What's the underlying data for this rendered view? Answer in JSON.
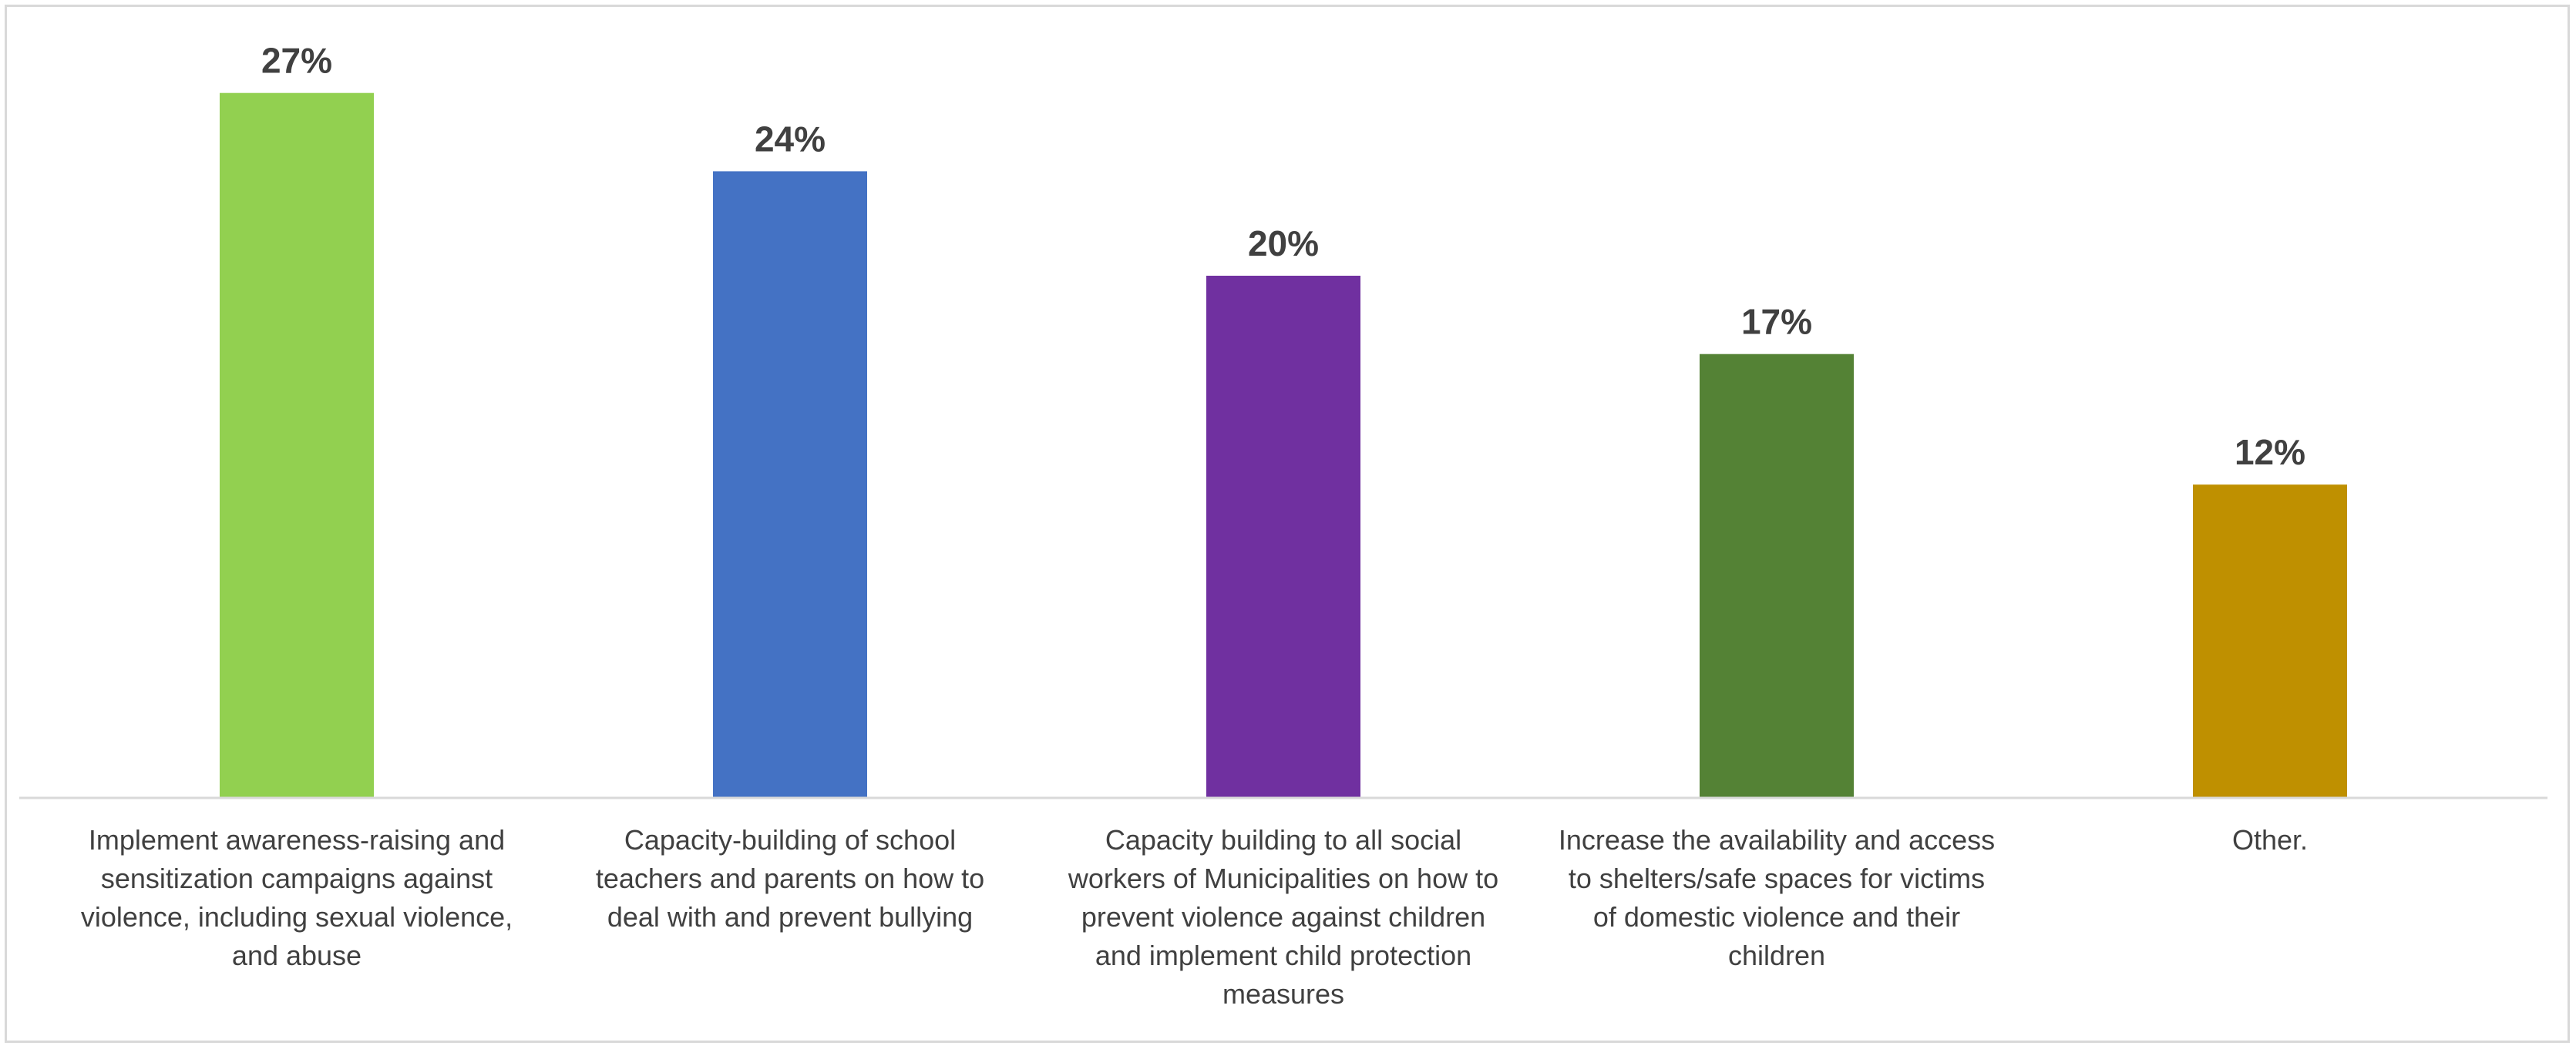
{
  "chart_data": {
    "type": "bar",
    "title": "",
    "xlabel": "",
    "ylabel": "",
    "ylim": [
      0,
      30
    ],
    "grid": false,
    "legend": "none",
    "categories": [
      [
        "Implement awareness-raising and",
        "sensitization campaigns against",
        "violence, including sexual violence,",
        "and abuse"
      ],
      [
        "Capacity-building of school",
        "teachers and parents on how to",
        "deal with and prevent bullying"
      ],
      [
        "Capacity building to all social",
        "workers of Municipalities on how to",
        "prevent violence against children",
        "and implement child protection",
        "measures"
      ],
      [
        "Increase the availability and access",
        "to shelters/safe spaces for victims",
        "of domestic violence and their",
        "children"
      ],
      [
        "Other."
      ]
    ],
    "values": [
      27,
      24,
      20,
      17,
      12
    ],
    "value_labels": [
      "27%",
      "24%",
      "20%",
      "17%",
      "12%"
    ],
    "colors": [
      "#92d050",
      "#4472c4",
      "#7030a0",
      "#548235",
      "#bf9000"
    ],
    "axis_color": "#d9d9d9",
    "label_color": "#404040"
  }
}
